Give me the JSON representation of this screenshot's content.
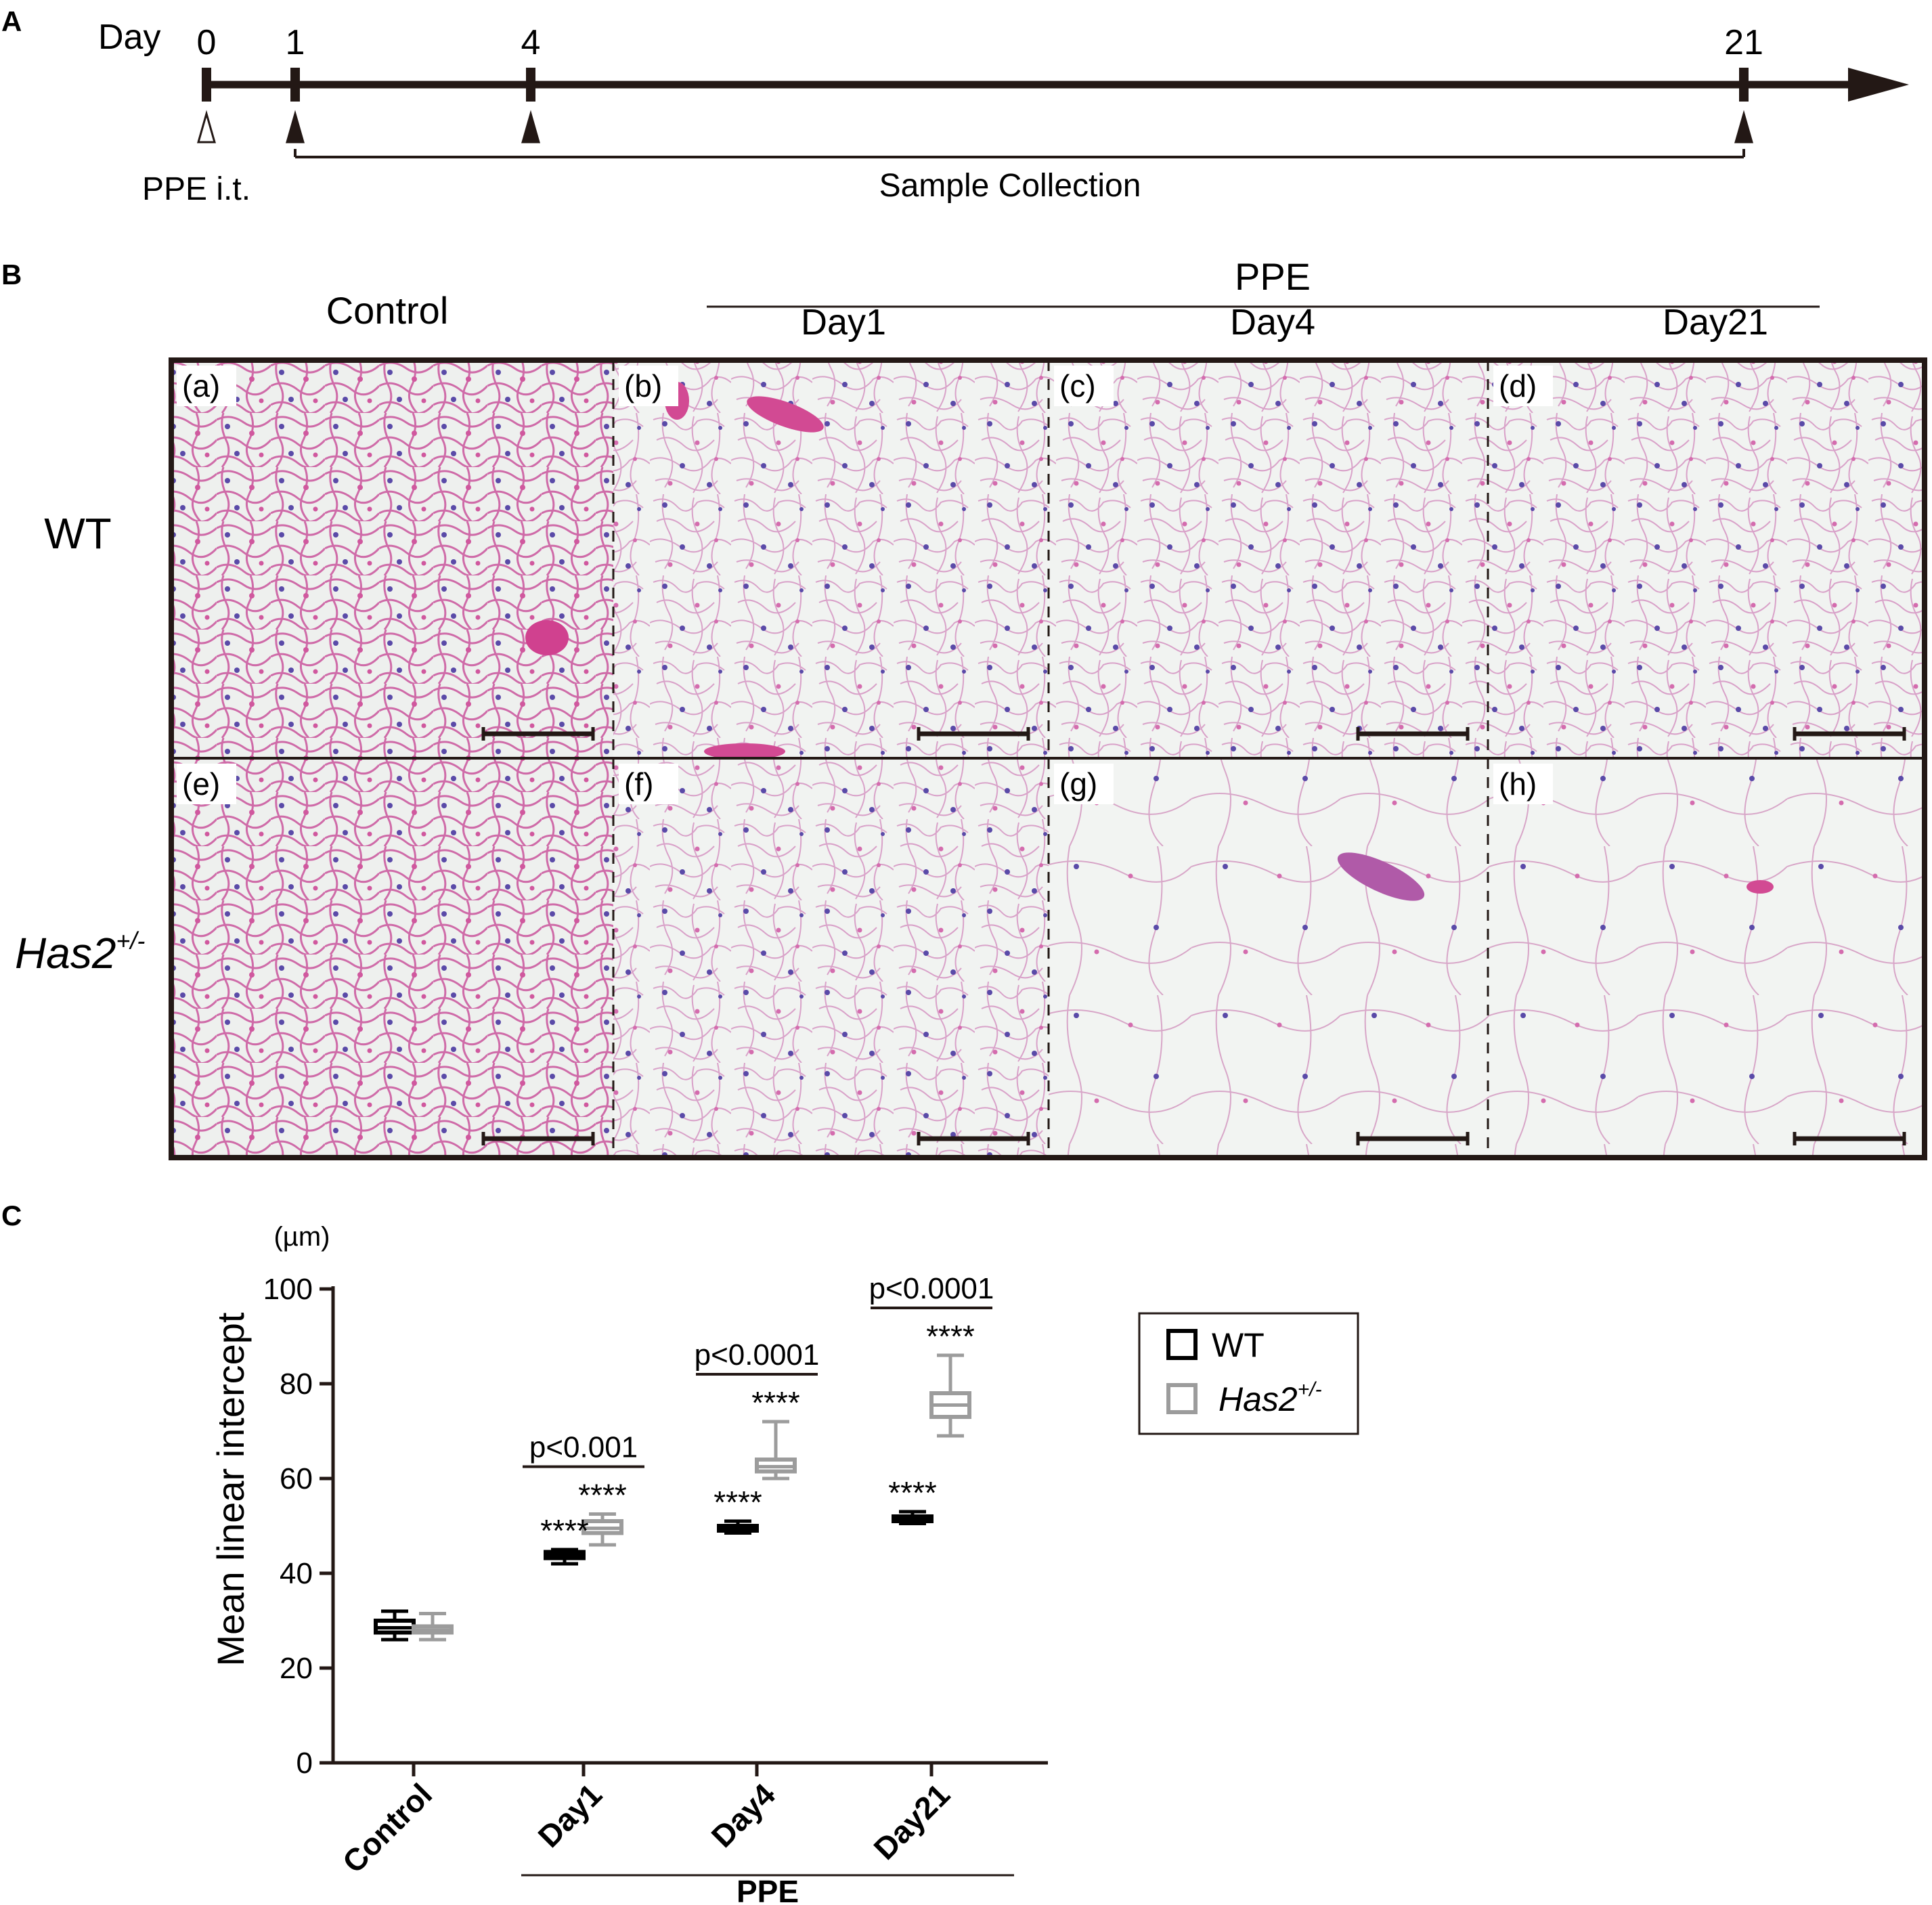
{
  "panel_labels": [
    "A",
    "B",
    "C"
  ],
  "timeline": {
    "day_label": "Day",
    "ticks": [
      {
        "day": 0,
        "label": "0",
        "marker": "open-arrowhead"
      },
      {
        "day": 1,
        "label": "1",
        "marker": "filled-arrowhead"
      },
      {
        "day": 4,
        "label": "4",
        "marker": "filled-arrowhead"
      },
      {
        "day": 21,
        "label": "21",
        "marker": "filled-arrowhead"
      }
    ],
    "treatment_label": "PPE i.t.",
    "collection_label": "Sample Collection"
  },
  "histology": {
    "control_label": "Control",
    "ppe_label": "PPE",
    "day_labels": [
      "Day1",
      "Day4",
      "Day21"
    ],
    "row_labels": [
      "WT",
      "Has2",
      "+/-"
    ],
    "subpanels": [
      "(a)",
      "(b)",
      "(c)",
      "(d)",
      "(e)",
      "(f)",
      "(g)",
      "(h)"
    ],
    "colors": {
      "tissue_pink": "#d46cae",
      "nuclei_blue": "#5a4aa8",
      "background": "#f1f3f1"
    }
  },
  "chart_data": {
    "type": "box",
    "unit_label": "(µm)",
    "ylabel": "Mean linear intercept",
    "ylim": [
      0,
      100
    ],
    "yticks": [
      0,
      20,
      40,
      60,
      80,
      100
    ],
    "categories": [
      "Control",
      "Day1",
      "Day4",
      "Day21"
    ],
    "group_label": "PPE",
    "series": [
      {
        "name": "WT",
        "color": "#000000",
        "boxes": [
          {
            "min": 26,
            "q1": 27.5,
            "median": 28.5,
            "q3": 30,
            "max": 32
          },
          {
            "min": 42,
            "q1": 43.2,
            "median": 43.8,
            "q3": 44.5,
            "max": 45
          },
          {
            "min": 48.5,
            "q1": 49,
            "median": 49.5,
            "q3": 50,
            "max": 51
          },
          {
            "min": 50.5,
            "q1": 51,
            "median": 51.5,
            "q3": 52,
            "max": 53
          }
        ],
        "significance": [
          "",
          "****",
          "****",
          "****"
        ]
      },
      {
        "name": "Has2+/-",
        "color": "#9c9c9c",
        "boxes": [
          {
            "min": 26,
            "q1": 27.5,
            "median": 28,
            "q3": 28.8,
            "max": 31.5
          },
          {
            "min": 46,
            "q1": 48.5,
            "median": 49.5,
            "q3": 51,
            "max": 52.5
          },
          {
            "min": 60,
            "q1": 61.5,
            "median": 62.5,
            "q3": 64,
            "max": 72
          },
          {
            "min": 69,
            "q1": 73,
            "median": 75.5,
            "q3": 78,
            "max": 86
          }
        ],
        "significance": [
          "",
          "****",
          "****",
          "****"
        ]
      }
    ],
    "comparisons": [
      {
        "category": "Day1",
        "label": "p<0.001"
      },
      {
        "category": "Day4",
        "label": "p<0.0001"
      },
      {
        "category": "Day21",
        "label": "p<0.0001"
      }
    ],
    "legend": {
      "position": "right",
      "entries": [
        "WT",
        "Has2",
        "+/-"
      ]
    }
  }
}
